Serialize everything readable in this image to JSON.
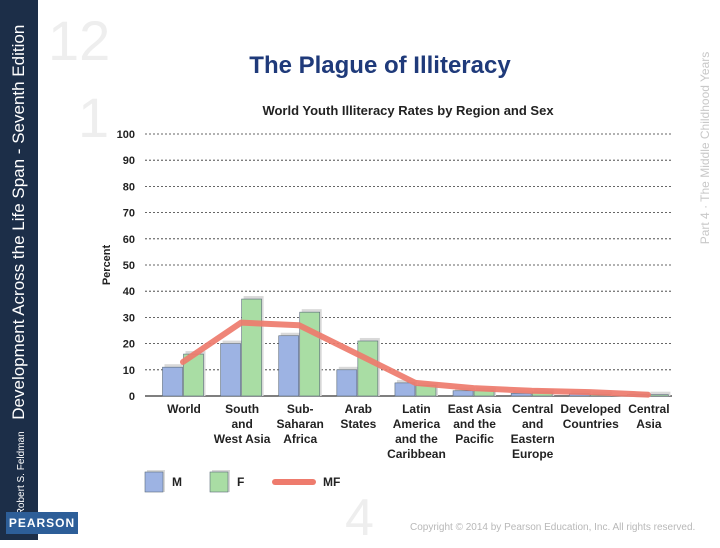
{
  "slide": {
    "title": "The Plague of Illiteracy",
    "spine_author": "Robert S. Feldman",
    "spine_title": "Development Across the Life Span - Seventh Edition",
    "side_text": "Part 4 · The Middle Childhood Years",
    "publisher": "PEARSON",
    "copyright": "Copyright © 2014 by Pearson Education, Inc. All rights reserved.",
    "bg_numbers": [
      "12",
      "1",
      "4"
    ]
  },
  "chart_data": {
    "type": "bar",
    "title": "World Youth Illiteracy Rates by Region and Sex",
    "ylabel": "Percent",
    "xlabel": "",
    "ylim": [
      0,
      100
    ],
    "yticks": [
      0,
      10,
      20,
      30,
      40,
      50,
      60,
      70,
      80,
      90,
      100
    ],
    "grid": true,
    "legend_position": "bottom",
    "categories": [
      [
        "World"
      ],
      [
        "South",
        "and",
        "West Asia"
      ],
      [
        "Sub-",
        "Saharan",
        "Africa"
      ],
      [
        "Arab",
        "States"
      ],
      [
        "Latin",
        "America",
        "and the",
        "Caribbean"
      ],
      [
        "East Asia",
        "and the",
        "Pacific"
      ],
      [
        "Central",
        "and",
        "Eastern",
        "Europe"
      ],
      [
        "Developed",
        "Countries"
      ],
      [
        "Central",
        "Asia"
      ]
    ],
    "series": [
      {
        "name": "M",
        "kind": "bar",
        "color": "#9db3e3",
        "values": [
          11,
          20,
          23,
          10,
          5,
          2,
          1,
          1,
          0.5
        ]
      },
      {
        "name": "F",
        "kind": "bar",
        "color": "#a9dda4",
        "values": [
          16,
          37,
          32,
          21,
          4,
          2,
          1.5,
          0.5,
          0.5
        ]
      },
      {
        "name": "MF",
        "kind": "line",
        "color": "#ee7b6d",
        "values": [
          13,
          28,
          27,
          16,
          5,
          3,
          2,
          1.5,
          0.5
        ]
      }
    ]
  }
}
